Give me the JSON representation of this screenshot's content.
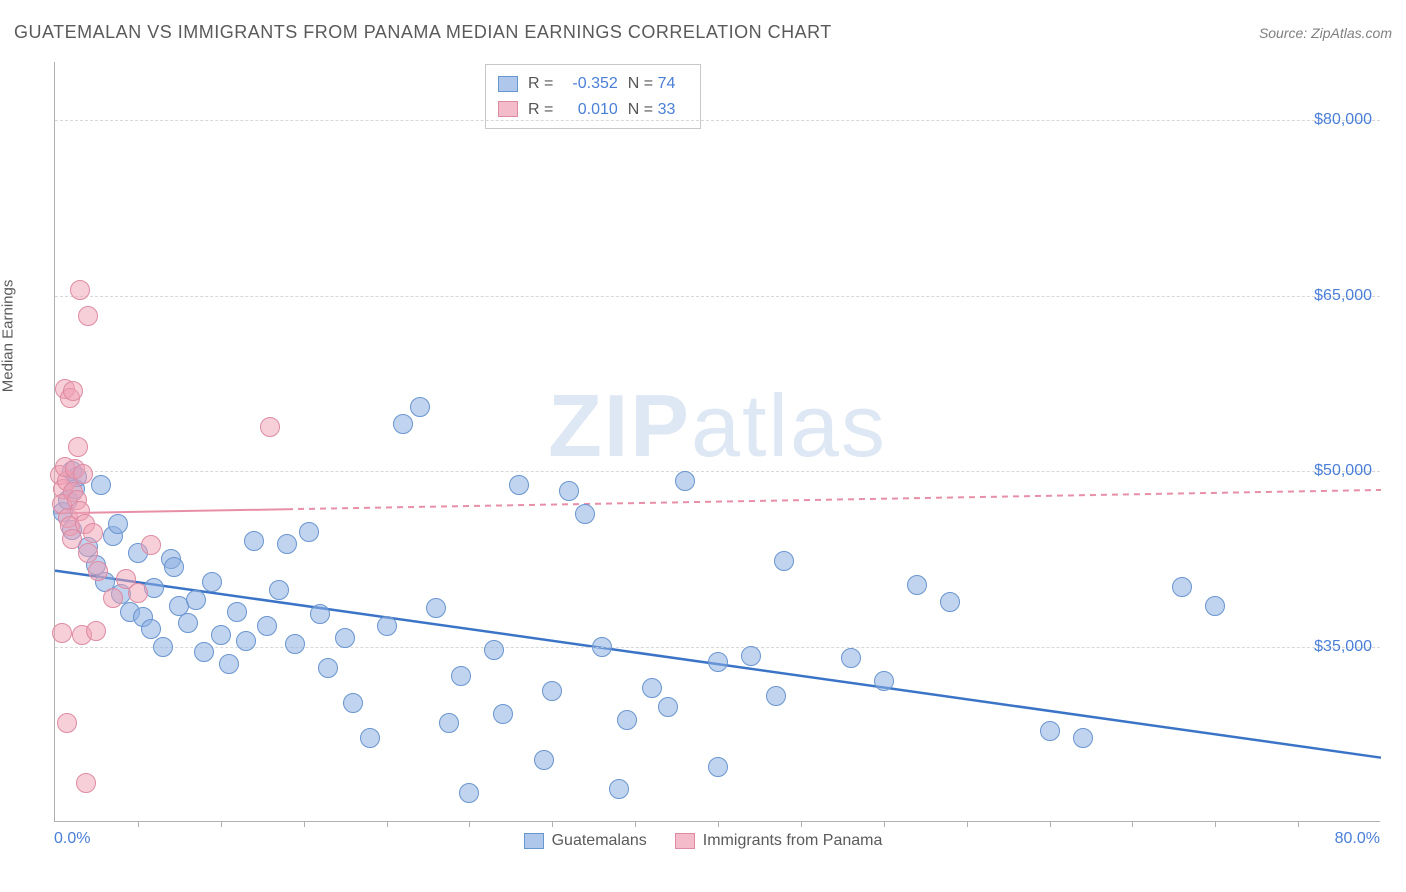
{
  "source_label": "Source: ZipAtlas.com",
  "chart": {
    "type": "scatter",
    "title": "GUATEMALAN VS IMMIGRANTS FROM PANAMA MEDIAN EARNINGS CORRELATION CHART",
    "y_axis_title": "Median Earnings",
    "xlim": [
      0,
      80
    ],
    "ylim": [
      20000,
      85000
    ],
    "x_tick_labels": [
      "0.0%",
      "80.0%"
    ],
    "y_ticks": [
      35000,
      50000,
      65000,
      80000
    ],
    "y_tick_labels": [
      "$35,000",
      "$50,000",
      "$65,000",
      "$80,000"
    ],
    "x_minor_ticks": [
      5,
      10,
      15,
      20,
      25,
      30,
      35,
      40,
      45,
      50,
      55,
      60,
      65,
      70,
      75
    ],
    "background_color": "#ffffff",
    "grid_color": "#d8d8d8",
    "axis_color": "#b0b0b0",
    "tick_label_color": "#4a7fd8",
    "title_color": "#5a5a5a",
    "title_fontsize": 18,
    "label_fontsize": 16,
    "marker_radius": 10,
    "watermark": "ZIPatlas",
    "series": [
      {
        "key": "guatemalans",
        "label": "Guatemalans",
        "R": "-0.352",
        "N": "74",
        "color_fill": "rgba(140,175,225,0.55)",
        "color_stroke": "#6a96cf",
        "trend": {
          "x1": 0,
          "y1": 41500,
          "x2": 80,
          "y2": 25500,
          "color": "#3b74c7",
          "width": 2.5,
          "dash": "none"
        },
        "points": [
          [
            0.5,
            46500
          ],
          [
            0.8,
            47500
          ],
          [
            1.0,
            45000
          ],
          [
            1.2,
            48500
          ],
          [
            1.0,
            50000
          ],
          [
            1.3,
            49500
          ],
          [
            2.0,
            43500
          ],
          [
            2.5,
            42000
          ],
          [
            3.0,
            40500
          ],
          [
            3.5,
            44500
          ],
          [
            3.8,
            45500
          ],
          [
            2.8,
            48800
          ],
          [
            4.0,
            39500
          ],
          [
            4.5,
            38000
          ],
          [
            5.0,
            43000
          ],
          [
            5.3,
            37500
          ],
          [
            5.8,
            36500
          ],
          [
            6.0,
            40000
          ],
          [
            6.5,
            35000
          ],
          [
            7.0,
            42500
          ],
          [
            7.5,
            38500
          ],
          [
            8.0,
            37000
          ],
          [
            8.5,
            39000
          ],
          [
            7.2,
            41800
          ],
          [
            9.0,
            34500
          ],
          [
            9.5,
            40500
          ],
          [
            10.0,
            36000
          ],
          [
            10.5,
            33500
          ],
          [
            11.0,
            38000
          ],
          [
            11.5,
            35500
          ],
          [
            12.0,
            44000
          ],
          [
            12.8,
            36800
          ],
          [
            13.5,
            39800
          ],
          [
            14.0,
            43800
          ],
          [
            14.5,
            35200
          ],
          [
            15.3,
            44800
          ],
          [
            16.0,
            37800
          ],
          [
            16.5,
            33200
          ],
          [
            17.5,
            35700
          ],
          [
            18.0,
            30200
          ],
          [
            19.0,
            27200
          ],
          [
            20.0,
            36800
          ],
          [
            21.0,
            54000
          ],
          [
            22.0,
            55500
          ],
          [
            23.0,
            38300
          ],
          [
            23.8,
            28500
          ],
          [
            24.5,
            32500
          ],
          [
            25.0,
            22500
          ],
          [
            26.5,
            34700
          ],
          [
            27.0,
            29200
          ],
          [
            28.0,
            48800
          ],
          [
            29.5,
            25300
          ],
          [
            30.0,
            31200
          ],
          [
            31.0,
            48300
          ],
          [
            32.0,
            46300
          ],
          [
            33.0,
            35000
          ],
          [
            34.5,
            28700
          ],
          [
            36.0,
            31500
          ],
          [
            37.0,
            29800
          ],
          [
            34.0,
            22800
          ],
          [
            38.0,
            49200
          ],
          [
            40.0,
            33700
          ],
          [
            42.0,
            34200
          ],
          [
            43.5,
            30800
          ],
          [
            40.0,
            24700
          ],
          [
            44.0,
            42300
          ],
          [
            48.0,
            34000
          ],
          [
            50.0,
            32100
          ],
          [
            52.0,
            40300
          ],
          [
            54.0,
            38800
          ],
          [
            60.0,
            27800
          ],
          [
            62.0,
            27200
          ],
          [
            68.0,
            40100
          ],
          [
            70.0,
            38500
          ]
        ]
      },
      {
        "key": "panama",
        "label": "Immigrants from Panama",
        "R": "0.010",
        "N": "33",
        "color_fill": "rgba(240,160,180,0.50)",
        "color_stroke": "#dd8ba3",
        "trend": {
          "x1": 0,
          "y1": 46400,
          "x2": 80,
          "y2": 48400,
          "color": "#e88fa8",
          "width": 2,
          "dash": "6,5",
          "solid_until": 14
        },
        "points": [
          [
            0.3,
            49700
          ],
          [
            0.5,
            48500
          ],
          [
            0.4,
            47200
          ],
          [
            0.7,
            49200
          ],
          [
            0.6,
            50400
          ],
          [
            1.1,
            48200
          ],
          [
            0.8,
            46000
          ],
          [
            1.3,
            47500
          ],
          [
            0.9,
            45300
          ],
          [
            1.2,
            50200
          ],
          [
            1.5,
            46600
          ],
          [
            1.7,
            49800
          ],
          [
            1.0,
            44200
          ],
          [
            1.8,
            45500
          ],
          [
            2.0,
            43000
          ],
          [
            2.3,
            44700
          ],
          [
            2.6,
            41500
          ],
          [
            0.6,
            57000
          ],
          [
            0.9,
            56300
          ],
          [
            1.1,
            56900
          ],
          [
            1.4,
            52100
          ],
          [
            2.0,
            63300
          ],
          [
            1.5,
            65500
          ],
          [
            0.4,
            36200
          ],
          [
            1.6,
            36000
          ],
          [
            2.5,
            36300
          ],
          [
            0.7,
            28500
          ],
          [
            1.9,
            23300
          ],
          [
            3.5,
            39200
          ],
          [
            4.3,
            40800
          ],
          [
            5.0,
            39600
          ],
          [
            5.8,
            43700
          ],
          [
            13.0,
            53800
          ]
        ]
      }
    ],
    "stats_legend": {
      "R_label": "R =",
      "N_label": "N ="
    },
    "bottom_legend": [
      {
        "label": "Guatemalans",
        "swatch": "blue"
      },
      {
        "label": "Immigrants from Panama",
        "swatch": "pink"
      }
    ]
  }
}
